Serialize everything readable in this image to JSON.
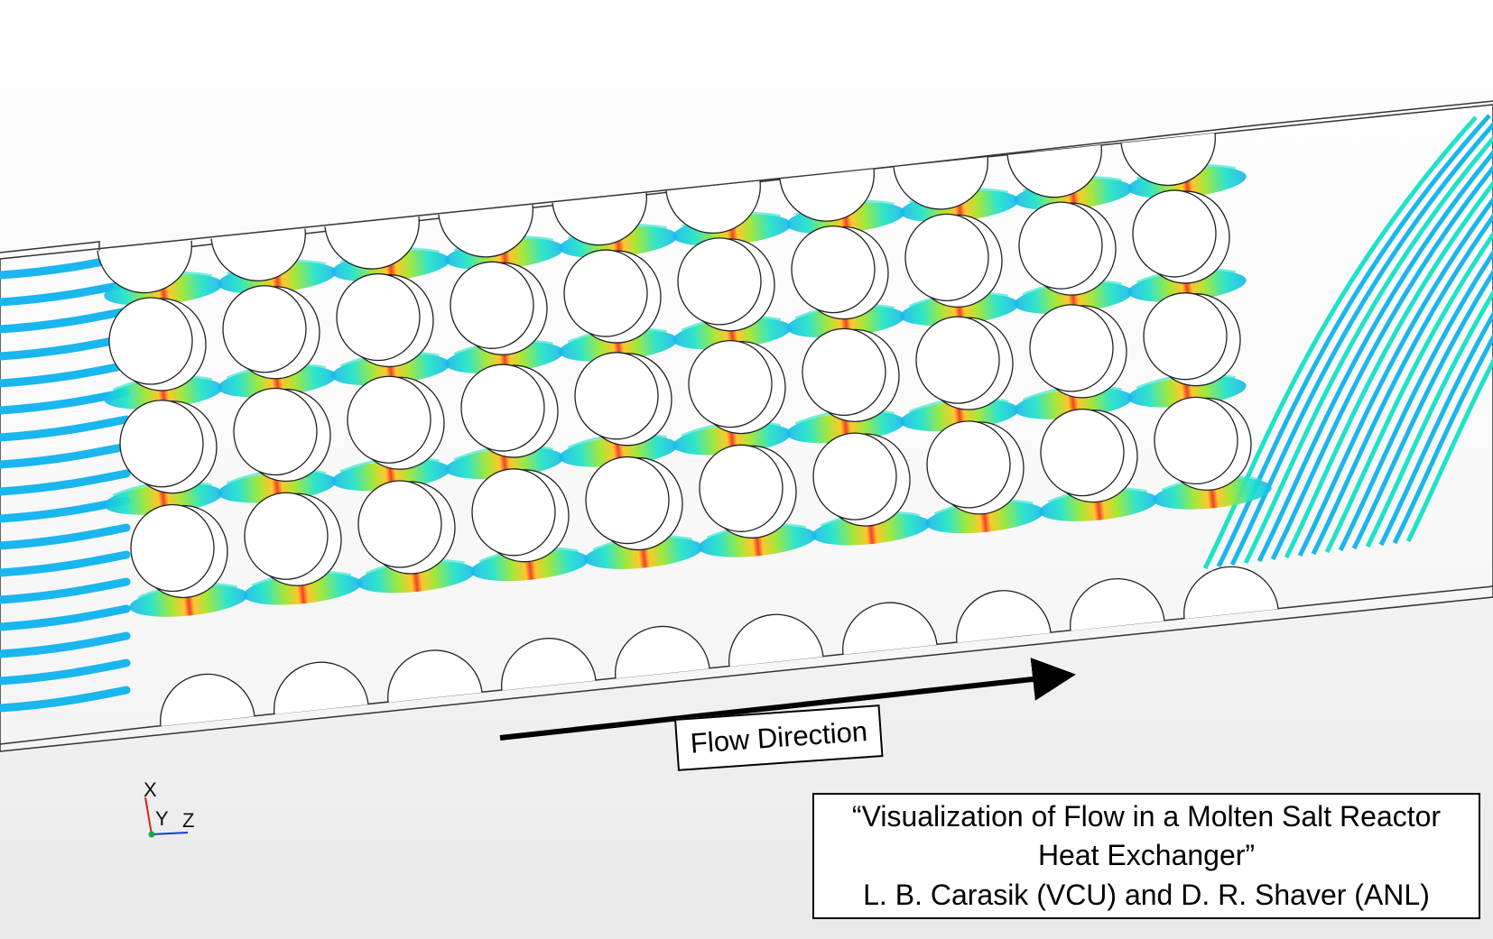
{
  "flow_label": "Flow Direction",
  "caption": {
    "line1": "“Visualization of Flow in a Molten Salt Reactor",
    "line2": "Heat Exchanger”",
    "line3": "L. B. Carasik (VCU) and D. R. Shaver (ANL)"
  },
  "axes": {
    "x": "X",
    "y": "Y",
    "z": "Z"
  },
  "colors": {
    "low": "#1ab6ee",
    "mid_low": "#1ee3c8",
    "mid": "#9ee62a",
    "mid_high": "#ffc21a",
    "high": "#f0321a",
    "dark_blue": "#1b3fd6"
  },
  "tube_bank": {
    "rows": 3,
    "columns": 10,
    "edge_half_tubes_per_side": 10
  }
}
